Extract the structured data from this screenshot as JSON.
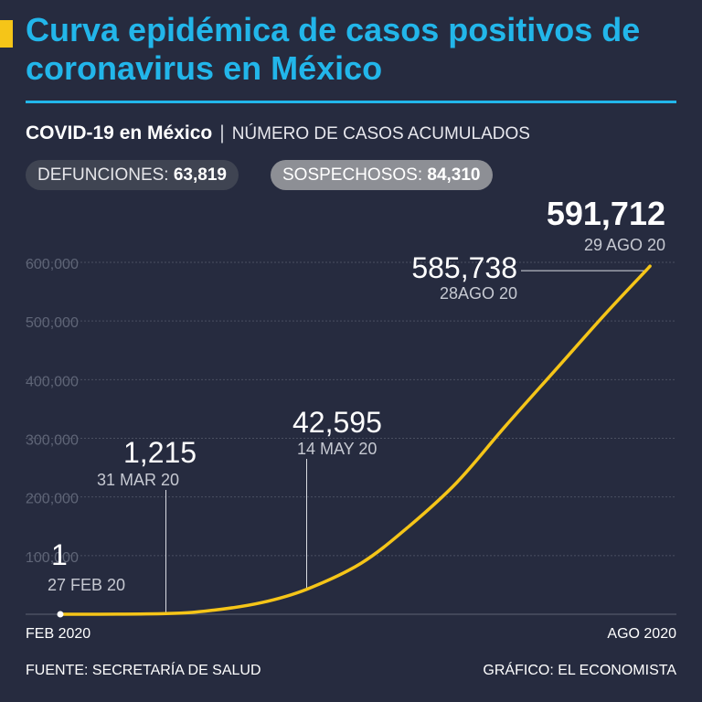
{
  "header": {
    "title": "Curva epidémica de casos positivos de coronavirus en México",
    "subtitle_bold": "COVID-19 en México",
    "subtitle_sep": "|",
    "subtitle_light": "NÚMERO DE CASOS ACUMULADOS"
  },
  "badges": {
    "defunciones_label": "DEFUNCIONES:",
    "defunciones_value": "63,819",
    "sospechosos_label": "SOSPECHOSOS:",
    "sospechosos_value": "84,310"
  },
  "footer": {
    "source": "FUENTE: SECRETARÍA DE SALUD",
    "credit": "GRÁFICO: EL ECONOMISTA"
  },
  "colors": {
    "background": "#262b3f",
    "accent": "#22b6ea",
    "line": "#f5c518"
  },
  "chart_data": {
    "type": "line",
    "title": "",
    "xlabel": "",
    "ylabel": "",
    "ylim": [
      0,
      600000
    ],
    "x_range": [
      "2020-02-27",
      "2020-08-29"
    ],
    "x_tick_labels": [
      "FEB 2020",
      "AGO 2020"
    ],
    "y_ticks": [
      100000,
      200000,
      300000,
      400000,
      500000,
      600000
    ],
    "y_tick_labels": [
      "100,000",
      "200,000",
      "300,000",
      "400,000",
      "500,000",
      "600,000"
    ],
    "grid": true,
    "series": [
      {
        "x": [
          "2020-02-27",
          "2020-03-31",
          "2020-04-15",
          "2020-04-30",
          "2020-05-14",
          "2020-05-31",
          "2020-06-15",
          "2020-06-30",
          "2020-07-15",
          "2020-07-31",
          "2020-08-15",
          "2020-08-28",
          "2020-08-29"
        ],
        "y": [
          1,
          1215,
          7000,
          20000,
          42595,
          87000,
          150000,
          225000,
          320000,
          418000,
          510000,
          585738,
          591712
        ]
      }
    ],
    "annotations": [
      {
        "date": "2020-02-27",
        "value": 1,
        "value_label": "1",
        "date_label": "27 FEB 20"
      },
      {
        "date": "2020-03-31",
        "value": 1215,
        "value_label": "1,215",
        "date_label": "31 MAR 20"
      },
      {
        "date": "2020-05-14",
        "value": 42595,
        "value_label": "42,595",
        "date_label": "14 MAY 20"
      },
      {
        "date": "2020-08-28",
        "value": 585738,
        "value_label": "585,738",
        "date_label": "28AGO 20"
      },
      {
        "date": "2020-08-29",
        "value": 591712,
        "value_label": "591,712",
        "date_label": "29 AGO 20"
      }
    ]
  }
}
